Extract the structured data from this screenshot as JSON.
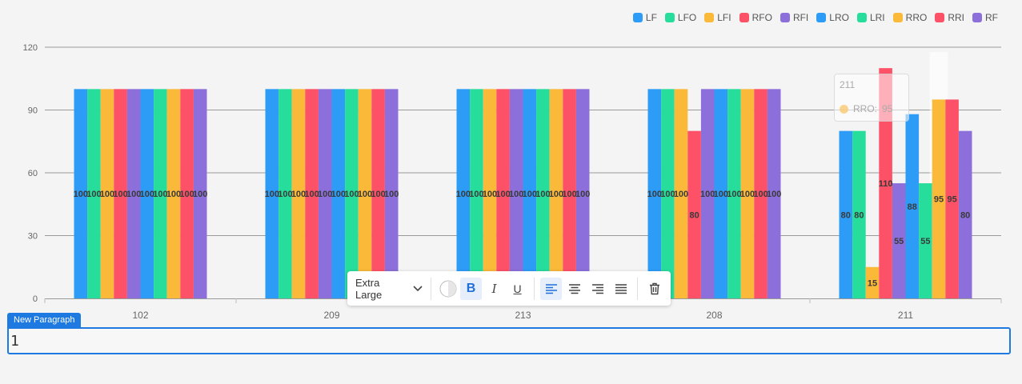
{
  "chart_data": {
    "type": "bar",
    "categories": [
      "102",
      "209",
      "213",
      "208",
      "211"
    ],
    "series": [
      {
        "name": "LF",
        "color": "#2d9cf7",
        "values": [
          100,
          100,
          100,
          100,
          80
        ]
      },
      {
        "name": "LFO",
        "color": "#27dd9c",
        "values": [
          100,
          100,
          100,
          100,
          80
        ]
      },
      {
        "name": "LFI",
        "color": "#fbb93a",
        "values": [
          100,
          100,
          100,
          100,
          15
        ]
      },
      {
        "name": "RFO",
        "color": "#fd5167",
        "values": [
          100,
          100,
          100,
          80,
          110
        ]
      },
      {
        "name": "RFI",
        "color": "#8c6fda",
        "values": [
          100,
          100,
          100,
          100,
          55
        ]
      },
      {
        "name": "LRO",
        "color": "#2d9cf7",
        "values": [
          100,
          100,
          100,
          100,
          88
        ]
      },
      {
        "name": "LRI",
        "color": "#27dd9c",
        "values": [
          100,
          100,
          100,
          100,
          55
        ]
      },
      {
        "name": "RRO",
        "color": "#fbb93a",
        "values": [
          100,
          100,
          100,
          100,
          95
        ]
      },
      {
        "name": "RRI",
        "color": "#fd5167",
        "values": [
          100,
          100,
          100,
          100,
          95
        ]
      },
      {
        "name": "RF",
        "color": "#8c6fda",
        "values": [
          100,
          100,
          100,
          100,
          80
        ]
      }
    ],
    "ylim": [
      0,
      120
    ],
    "yticks": [
      "0",
      "30",
      "60",
      "90",
      "120"
    ],
    "grid": true,
    "legend": "top-right"
  },
  "tooltip": {
    "title": "211",
    "series": "RRO:",
    "value": "95"
  },
  "toolbar": {
    "font_size": "Extra Large",
    "bold_icon": "bold-icon",
    "italic_icon": "italic-icon",
    "underline_icon": "underline-icon",
    "bold": "B",
    "italic": "I",
    "underline": "U"
  },
  "paragraph": {
    "tag": "New Paragraph",
    "value": "1"
  }
}
